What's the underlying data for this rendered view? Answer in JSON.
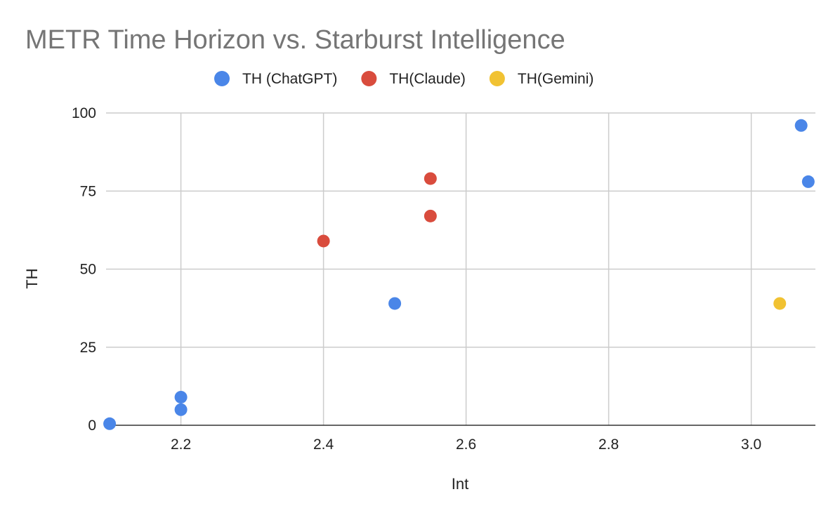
{
  "chart_data": {
    "type": "scatter",
    "title": "METR Time Horizon vs. Starburst Intelligence",
    "xlabel": "Int",
    "ylabel": "TH",
    "xlim": [
      2.095,
      3.09
    ],
    "ylim": [
      0,
      100
    ],
    "x_ticks": [
      2.2,
      2.4,
      2.6,
      2.8,
      3.0
    ],
    "x_tick_labels": [
      "2.2",
      "2.4",
      "2.6",
      "2.8",
      "3.0"
    ],
    "y_ticks": [
      0,
      25,
      50,
      75,
      100
    ],
    "y_tick_labels": [
      "0",
      "25",
      "50",
      "75",
      "100"
    ],
    "grid": true,
    "legend_position": "top",
    "series": [
      {
        "name": "TH (ChatGPT)",
        "color": "#4a86e8",
        "points": [
          {
            "x": 2.1,
            "y": 0.5
          },
          {
            "x": 2.2,
            "y": 5
          },
          {
            "x": 2.2,
            "y": 9
          },
          {
            "x": 2.5,
            "y": 39
          },
          {
            "x": 3.07,
            "y": 96
          },
          {
            "x": 3.08,
            "y": 78
          }
        ]
      },
      {
        "name": "TH(Claude)",
        "color": "#d94c3d",
        "points": [
          {
            "x": 2.4,
            "y": 59
          },
          {
            "x": 2.55,
            "y": 67
          },
          {
            "x": 2.55,
            "y": 79
          }
        ]
      },
      {
        "name": "TH(Gemini)",
        "color": "#f1c232",
        "points": [
          {
            "x": 3.04,
            "y": 39
          }
        ]
      }
    ]
  }
}
